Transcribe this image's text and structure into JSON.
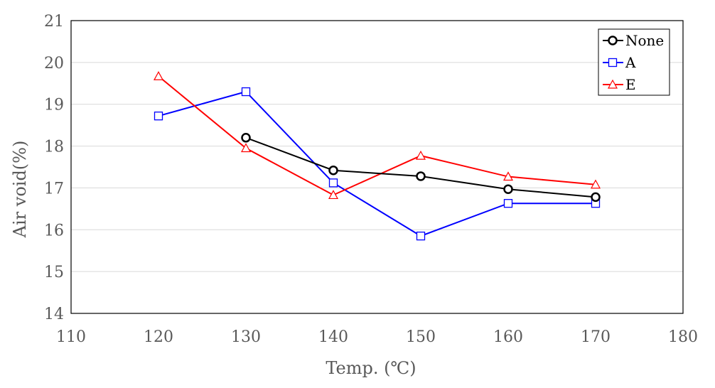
{
  "chart_data": {
    "type": "line",
    "xlabel": "Temp. (℃)",
    "ylabel": "Air void(%)",
    "xlim": [
      110,
      180
    ],
    "ylim": [
      14,
      21
    ],
    "x_ticks": [
      110,
      120,
      130,
      140,
      150,
      160,
      170,
      180
    ],
    "y_ticks": [
      14,
      15,
      16,
      17,
      18,
      19,
      20,
      21
    ],
    "grid": "horizontal",
    "legend_position": "top-right",
    "series": [
      {
        "name": "None",
        "color": "#000000",
        "marker": "circle",
        "x": [
          130,
          140,
          150,
          160,
          170
        ],
        "y": [
          18.2,
          17.42,
          17.28,
          16.97,
          16.78
        ]
      },
      {
        "name": "A",
        "color": "#0000ff",
        "marker": "square",
        "x": [
          120,
          130,
          140,
          150,
          160,
          170
        ],
        "y": [
          18.72,
          19.3,
          17.12,
          15.85,
          16.63,
          16.63
        ]
      },
      {
        "name": "E",
        "color": "#ff0000",
        "marker": "triangle",
        "x": [
          120,
          130,
          140,
          150,
          160,
          170
        ],
        "y": [
          19.67,
          17.95,
          16.83,
          17.77,
          17.27,
          17.08
        ]
      }
    ]
  }
}
